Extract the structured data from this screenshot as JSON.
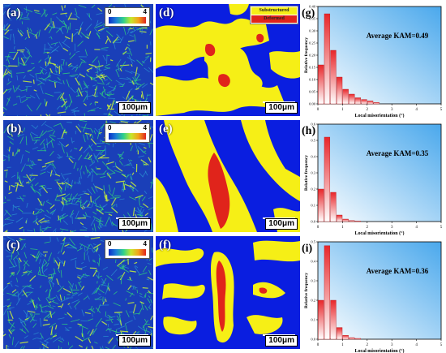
{
  "panels": {
    "a": {
      "label": "(a)",
      "scale": "100μm",
      "cbar_min": "0",
      "cbar_max": "4"
    },
    "b": {
      "label": "(b)",
      "scale": "100μm",
      "cbar_min": "0",
      "cbar_max": "4"
    },
    "c": {
      "label": "(c)",
      "scale": "100μm",
      "cbar_min": "0",
      "cbar_max": "4"
    },
    "d": {
      "label": "(d)",
      "scale": "100μm",
      "legend": [
        "Substructured",
        "Deformed"
      ]
    },
    "e": {
      "label": "(e)",
      "scale": "100μm"
    },
    "f": {
      "label": "(f)",
      "scale": "100μm"
    }
  },
  "colors": {
    "kam_bg": "#1a3fb8",
    "kam_line": "#2fd37a",
    "map_blue": "#0a1ee0",
    "map_yellow": "#f6ef16",
    "map_red": "#e0241b"
  },
  "chart_data": [
    {
      "type": "bar",
      "label": "(g)",
      "title": "Average KAM=0.49",
      "xlabel": "Local misorientation (°)",
      "ylabel": "Relative frequency",
      "xlim": [
        0,
        5
      ],
      "ylim": [
        0,
        0.4
      ],
      "xticks": [
        "0",
        "1",
        "2",
        "3",
        "4",
        "5"
      ],
      "yticks": [
        "0.00",
        "0.05",
        "0.10",
        "0.15",
        "0.20",
        "0.25",
        "0.30",
        "0.35",
        "0.40"
      ],
      "x": [
        0.125,
        0.375,
        0.625,
        0.875,
        1.125,
        1.375,
        1.625,
        1.875,
        2.125,
        2.375
      ],
      "values": [
        0.16,
        0.37,
        0.22,
        0.11,
        0.06,
        0.04,
        0.025,
        0.018,
        0.012,
        0.006
      ]
    },
    {
      "type": "bar",
      "label": "(h)",
      "title": "Average KAM=0.35",
      "xlabel": "Local misorientation (°)",
      "ylabel": "Relative frequency",
      "xlim": [
        0,
        5
      ],
      "ylim": [
        0,
        0.6
      ],
      "xticks": [
        "0",
        "1",
        "2",
        "3",
        "4",
        "5"
      ],
      "yticks": [
        "0.0",
        "0.1",
        "0.2",
        "0.3",
        "0.4",
        "0.5",
        "0.6"
      ],
      "x": [
        0.125,
        0.375,
        0.625,
        0.875,
        1.125,
        1.375,
        1.625
      ],
      "values": [
        0.2,
        0.52,
        0.18,
        0.04,
        0.015,
        0.006,
        0.003
      ]
    },
    {
      "type": "bar",
      "label": "(i)",
      "title": "Average KAM=0.36",
      "xlabel": "Local misorientation (°)",
      "ylabel": "Relative frequency",
      "xlim": [
        0,
        5
      ],
      "ylim": [
        0,
        0.5
      ],
      "xticks": [
        "0",
        "1",
        "2",
        "3",
        "4",
        "5"
      ],
      "yticks": [
        "0.0",
        "0.1",
        "0.2",
        "0.3",
        "0.4",
        "0.5"
      ],
      "x": [
        0.125,
        0.375,
        0.625,
        0.875,
        1.125,
        1.375,
        1.625
      ],
      "values": [
        0.2,
        0.48,
        0.2,
        0.06,
        0.02,
        0.008,
        0.004
      ]
    }
  ]
}
